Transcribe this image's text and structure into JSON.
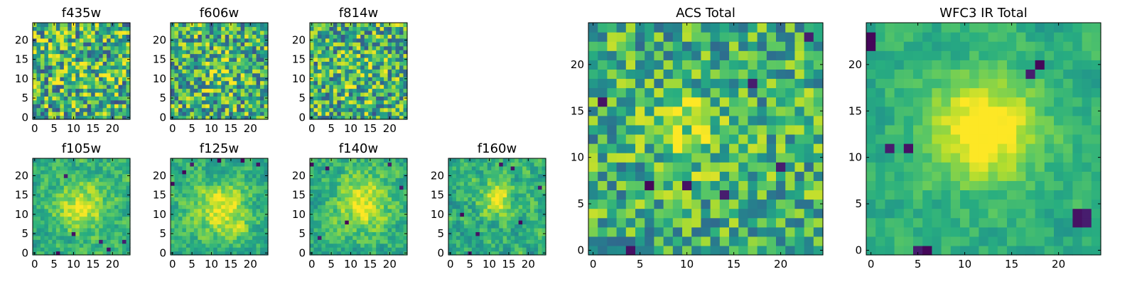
{
  "figure": {
    "background": "#ffffff",
    "colormap": "viridis"
  },
  "chart_data": [
    {
      "type": "heatmap",
      "name": "panel-f435w",
      "title": "f435w",
      "grid_size": 25,
      "xlim": [
        -0.5,
        24.5
      ],
      "ylim": [
        -0.5,
        24.5
      ],
      "xticks": [
        0,
        5,
        10,
        15,
        20
      ],
      "xtick_labels": [
        "0",
        "5",
        "10",
        "15",
        "20"
      ],
      "yticks": [
        0,
        5,
        10,
        15,
        20
      ],
      "ytick_labels": [
        "0",
        "5",
        "10",
        "15",
        "20"
      ],
      "texture": "noise",
      "noise": 0.75,
      "seed": 11,
      "blob": {
        "x": 12,
        "y": 12,
        "sigma": 5,
        "amp": 0.1
      },
      "dark_spots": []
    },
    {
      "type": "heatmap",
      "name": "panel-f606w",
      "title": "f606w",
      "grid_size": 25,
      "xlim": [
        -0.5,
        24.5
      ],
      "ylim": [
        -0.5,
        24.5
      ],
      "xticks": [
        0,
        5,
        10,
        15,
        20
      ],
      "xtick_labels": [
        "0",
        "5",
        "10",
        "15",
        "20"
      ],
      "yticks": [
        0,
        5,
        10,
        15,
        20
      ],
      "ytick_labels": [
        "0",
        "5",
        "10",
        "15",
        "20"
      ],
      "texture": "noise",
      "noise": 0.7,
      "seed": 23,
      "blob": {
        "x": 12,
        "y": 12,
        "sigma": 3,
        "amp": 0.25
      },
      "dark_spots": []
    },
    {
      "type": "heatmap",
      "name": "panel-f814w",
      "title": "f814w",
      "grid_size": 25,
      "xlim": [
        -0.5,
        24.5
      ],
      "ylim": [
        -0.5,
        24.5
      ],
      "xticks": [
        0,
        5,
        10,
        15,
        20
      ],
      "xtick_labels": [
        "0",
        "5",
        "10",
        "15",
        "20"
      ],
      "yticks": [
        0,
        5,
        10,
        15,
        20
      ],
      "ytick_labels": [
        "0",
        "5",
        "10",
        "15",
        "20"
      ],
      "texture": "noise",
      "noise": 0.7,
      "seed": 37,
      "blob": {
        "x": 12,
        "y": 12,
        "sigma": 4,
        "amp": 0.1
      },
      "dark_spots": []
    },
    {
      "type": "heatmap",
      "name": "panel-f105w",
      "title": "f105w",
      "grid_size": 25,
      "xlim": [
        -0.5,
        24.5
      ],
      "ylim": [
        -0.5,
        24.5
      ],
      "xticks": [
        0,
        5,
        10,
        15,
        20
      ],
      "xtick_labels": [
        "0",
        "5",
        "10",
        "15",
        "20"
      ],
      "yticks": [
        0,
        5,
        10,
        15,
        20
      ],
      "ytick_labels": [
        "0",
        "5",
        "10",
        "15",
        "20"
      ],
      "texture": "smooth",
      "noise": 0.45,
      "seed": 41,
      "blob": {
        "x": 12,
        "y": 12,
        "sigma": 4.5,
        "amp": 0.45
      },
      "dark_spots": [
        [
          8,
          20
        ],
        [
          10,
          5
        ],
        [
          19,
          1
        ],
        [
          17,
          3
        ],
        [
          6,
          0
        ],
        [
          23,
          3
        ]
      ]
    },
    {
      "type": "heatmap",
      "name": "panel-f125w",
      "title": "f125w",
      "grid_size": 25,
      "xlim": [
        -0.5,
        24.5
      ],
      "ylim": [
        -0.5,
        24.5
      ],
      "xticks": [
        0,
        5,
        10,
        15,
        20
      ],
      "xtick_labels": [
        "0",
        "5",
        "10",
        "15",
        "20"
      ],
      "yticks": [
        0,
        5,
        10,
        15,
        20
      ],
      "ytick_labels": [
        "0",
        "5",
        "10",
        "15",
        "20"
      ],
      "texture": "smooth",
      "noise": 0.45,
      "seed": 53,
      "blob": {
        "x": 13,
        "y": 11,
        "sigma": 5,
        "amp": 0.45
      },
      "dark_spots": [
        [
          5,
          23
        ],
        [
          3,
          21
        ],
        [
          18,
          24
        ],
        [
          22,
          23
        ],
        [
          0,
          18
        ],
        [
          12,
          24
        ]
      ]
    },
    {
      "type": "heatmap",
      "name": "panel-f140w",
      "title": "f140w",
      "grid_size": 25,
      "xlim": [
        -0.5,
        24.5
      ],
      "ylim": [
        -0.5,
        24.5
      ],
      "xticks": [
        0,
        5,
        10,
        15,
        20
      ],
      "xtick_labels": [
        "0",
        "5",
        "10",
        "15",
        "20"
      ],
      "yticks": [
        0,
        5,
        10,
        15,
        20
      ],
      "ytick_labels": [
        "0",
        "5",
        "10",
        "15",
        "20"
      ],
      "texture": "smooth",
      "noise": 0.45,
      "seed": 67,
      "blob": {
        "x": 13,
        "y": 13,
        "sigma": 5,
        "amp": 0.45
      },
      "dark_spots": [
        [
          0,
          23
        ],
        [
          4,
          22
        ],
        [
          20,
          23
        ],
        [
          23,
          17
        ],
        [
          2,
          4
        ],
        [
          9,
          8
        ]
      ]
    },
    {
      "type": "heatmap",
      "name": "panel-f160w",
      "title": "f160w",
      "grid_size": 25,
      "xlim": [
        -0.5,
        24.5
      ],
      "ylim": [
        -0.5,
        24.5
      ],
      "xticks": [
        0,
        5,
        10,
        15,
        20
      ],
      "xtick_labels": [
        "0",
        "5",
        "10",
        "15",
        "20"
      ],
      "yticks": [
        0,
        5,
        10,
        15,
        20
      ],
      "ytick_labels": [
        "0",
        "5",
        "10",
        "15",
        "20"
      ],
      "texture": "smooth",
      "noise": 0.5,
      "seed": 79,
      "blob": {
        "x": 12,
        "y": 14,
        "sigma": 3,
        "amp": 0.5
      },
      "dark_spots": [
        [
          13,
          23
        ],
        [
          16,
          22
        ],
        [
          3,
          10
        ],
        [
          18,
          8
        ],
        [
          7,
          5
        ],
        [
          23,
          17
        ],
        [
          5,
          0
        ]
      ]
    },
    {
      "type": "heatmap",
      "name": "panel-acs-total",
      "title": "ACS Total",
      "grid_size": 25,
      "xlim": [
        -0.5,
        24.5
      ],
      "ylim": [
        -0.5,
        24.5
      ],
      "xticks": [
        0,
        5,
        10,
        15,
        20
      ],
      "xtick_labels": [
        "0",
        "5",
        "10",
        "15",
        "20"
      ],
      "yticks": [
        0,
        5,
        10,
        15,
        20
      ],
      "ytick_labels": [
        "0",
        "5",
        "10",
        "15",
        "20"
      ],
      "texture": "noise",
      "noise": 0.55,
      "seed": 97,
      "blob": {
        "x": 10,
        "y": 13,
        "sigma": 3,
        "amp": 0.3
      },
      "dark_spots": [
        [
          1,
          16
        ],
        [
          17,
          18
        ],
        [
          10,
          7
        ],
        [
          14,
          6
        ],
        [
          20,
          9
        ],
        [
          4,
          0
        ],
        [
          23,
          23
        ],
        [
          6,
          7
        ]
      ]
    },
    {
      "type": "heatmap",
      "name": "panel-wfc3-ir-total",
      "title": "WFC3 IR Total",
      "grid_size": 25,
      "xlim": [
        -0.5,
        24.5
      ],
      "ylim": [
        -0.5,
        24.5
      ],
      "xticks": [
        0,
        5,
        10,
        15,
        20
      ],
      "xtick_labels": [
        "0",
        "5",
        "10",
        "15",
        "20"
      ],
      "yticks": [
        0,
        5,
        10,
        15,
        20
      ],
      "ytick_labels": [
        "0",
        "5",
        "10",
        "15",
        "20"
      ],
      "texture": "smooth",
      "noise": 0.3,
      "seed": 113,
      "blob": {
        "x": 12,
        "y": 13,
        "sigma": 4,
        "amp": 0.6
      },
      "dark_spots": [
        [
          0,
          22
        ],
        [
          0,
          23
        ],
        [
          5,
          0
        ],
        [
          6,
          0
        ],
        [
          22,
          3
        ],
        [
          23,
          4
        ],
        [
          22,
          4
        ],
        [
          23,
          3
        ],
        [
          2,
          11
        ],
        [
          4,
          11
        ],
        [
          17,
          19
        ],
        [
          18,
          20
        ]
      ]
    }
  ]
}
